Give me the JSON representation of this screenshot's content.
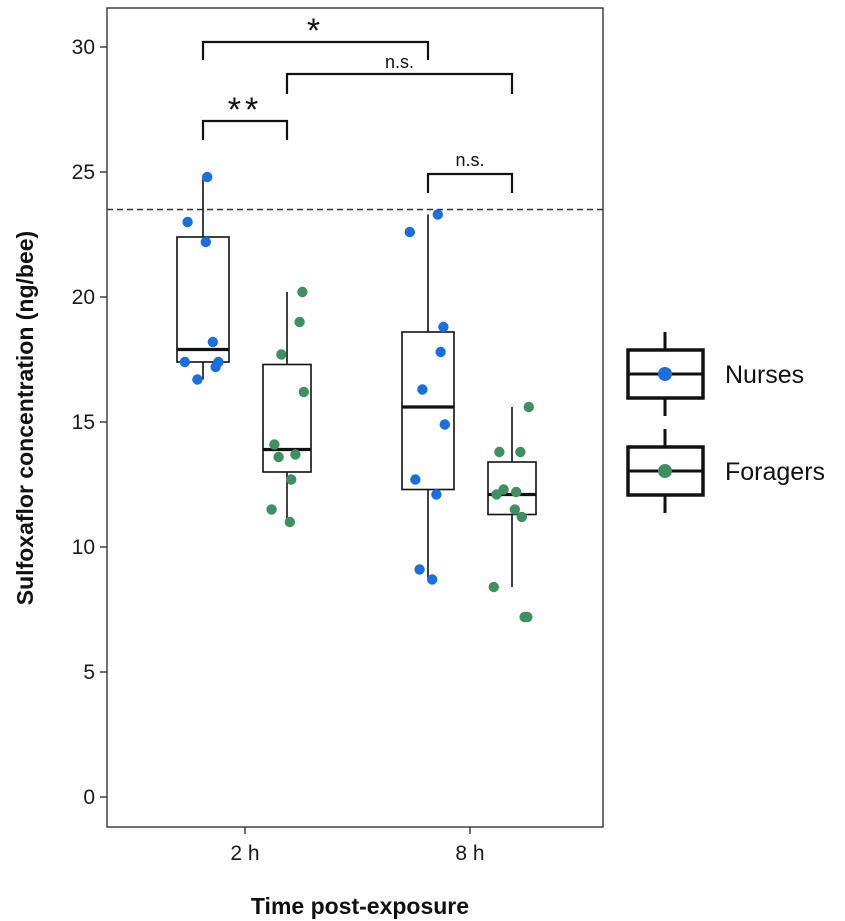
{
  "chart_data": {
    "type": "box",
    "xlabel": "Time post-exposure",
    "ylabel": "Sulfoxaflor concentration (ng/bee)",
    "categories": [
      "2 h",
      "8 h"
    ],
    "ylim": [
      -1.2,
      31.5
    ],
    "yticks": [
      0,
      5,
      10,
      15,
      20,
      25,
      30
    ],
    "grid": false,
    "legend_position": "right",
    "reference_line": {
      "y": 23.5,
      "style": "dashed"
    },
    "series": [
      {
        "name": "Nurses",
        "color": "#1a6fdf",
        "boxes": [
          {
            "category": "2 h",
            "whisker_low": 16.7,
            "q1": 17.4,
            "median": 17.9,
            "q3": 22.4,
            "whisker_high": 24.8
          },
          {
            "category": "8 h",
            "whisker_low": 8.7,
            "q1": 12.3,
            "median": 15.6,
            "q3": 18.6,
            "whisker_high": 23.3
          }
        ],
        "points": [
          {
            "category": "2 h",
            "values": [
              24.8,
              23.0,
              22.2,
              18.2,
              17.4,
              17.4,
              17.2,
              16.7
            ]
          },
          {
            "category": "8 h",
            "values": [
              23.3,
              22.6,
              18.8,
              17.8,
              16.3,
              14.9,
              12.7,
              12.1,
              9.1,
              8.7
            ]
          }
        ]
      },
      {
        "name": "Foragers",
        "color": "#3f9060",
        "boxes": [
          {
            "category": "2 h",
            "whisker_low": 11.1,
            "q1": 13.0,
            "median": 13.9,
            "q3": 17.3,
            "whisker_high": 20.2
          },
          {
            "category": "8 h",
            "whisker_low": 8.4,
            "q1": 11.3,
            "median": 12.1,
            "q3": 13.4,
            "whisker_high": 15.6
          }
        ],
        "points": [
          {
            "category": "2 h",
            "values": [
              20.2,
              19.0,
              17.7,
              16.2,
              14.1,
              13.7,
              13.6,
              12.7,
              11.5,
              11.0
            ]
          },
          {
            "category": "8 h",
            "values": [
              15.6,
              13.8,
              13.8,
              12.3,
              12.2,
              12.1,
              11.5,
              11.2,
              8.4,
              7.2,
              7.2
            ]
          }
        ]
      }
    ],
    "significance": [
      {
        "label": "*",
        "from": "Nurses 2 h",
        "to": "Nurses 8 h"
      },
      {
        "label": "n.s.",
        "from": "Foragers 2 h",
        "to": "Foragers 8 h"
      },
      {
        "label": "**",
        "from": "Nurses 2 h",
        "to": "Foragers 2 h"
      },
      {
        "label": "n.s.",
        "from": "Nurses 8 h",
        "to": "Foragers 8 h"
      }
    ]
  }
}
